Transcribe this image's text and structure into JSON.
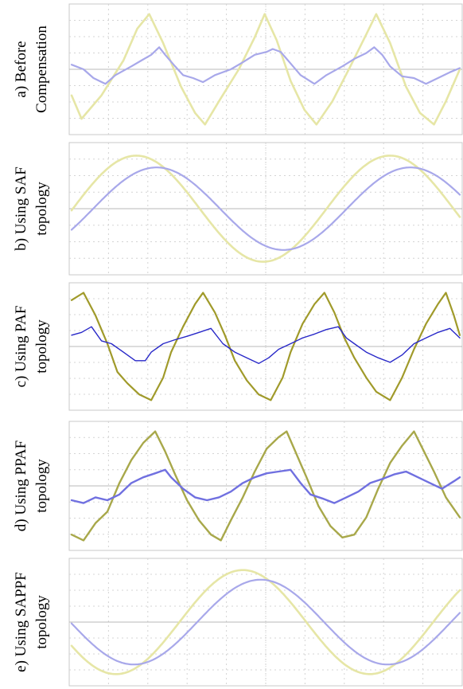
{
  "chart_data": [
    {
      "type": "line",
      "label_lines": [
        "a) Before",
        "Compensation"
      ],
      "grid": true,
      "series": [
        {
          "color": "#e6e6a6",
          "width": 2.6,
          "points": [
            [
              0,
              -0.45
            ],
            [
              0.05,
              -0.85
            ],
            [
              0.15,
              -0.45
            ],
            [
              0.26,
              0.15
            ],
            [
              0.33,
              0.7
            ],
            [
              0.39,
              0.95
            ],
            [
              0.46,
              0.45
            ],
            [
              0.55,
              -0.3
            ],
            [
              0.62,
              -0.75
            ],
            [
              0.67,
              -0.95
            ],
            [
              0.74,
              -0.55
            ],
            [
              0.84,
              0
            ],
            [
              0.92,
              0.55
            ],
            [
              0.97,
              0.95
            ],
            [
              1.03,
              0.5
            ],
            [
              1.1,
              -0.2
            ],
            [
              1.17,
              -0.7
            ],
            [
              1.23,
              -0.95
            ],
            [
              1.31,
              -0.55
            ],
            [
              1.4,
              0.05
            ],
            [
              1.48,
              0.6
            ],
            [
              1.53,
              0.95
            ],
            [
              1.6,
              0.45
            ],
            [
              1.68,
              -0.3
            ],
            [
              1.75,
              -0.75
            ],
            [
              1.82,
              -0.95
            ],
            [
              1.88,
              -0.55
            ],
            [
              1.95,
              0
            ]
          ]
        },
        {
          "color": "#a8a8ea",
          "width": 2.2,
          "points": [
            [
              0,
              0.08
            ],
            [
              0.06,
              0
            ],
            [
              0.11,
              -0.15
            ],
            [
              0.17,
              -0.25
            ],
            [
              0.22,
              -0.1
            ],
            [
              0.3,
              0.05
            ],
            [
              0.35,
              0.15
            ],
            [
              0.4,
              0.25
            ],
            [
              0.44,
              0.38
            ],
            [
              0.47,
              0.25
            ],
            [
              0.52,
              0.05
            ],
            [
              0.56,
              -0.1
            ],
            [
              0.61,
              -0.15
            ],
            [
              0.66,
              -0.22
            ],
            [
              0.72,
              -0.1
            ],
            [
              0.8,
              0
            ],
            [
              0.86,
              0.12
            ],
            [
              0.92,
              0.25
            ],
            [
              0.98,
              0.3
            ],
            [
              1.01,
              0.35
            ],
            [
              1.05,
              0.3
            ],
            [
              1.1,
              0.1
            ],
            [
              1.15,
              -0.1
            ],
            [
              1.22,
              -0.25
            ],
            [
              1.28,
              -0.1
            ],
            [
              1.36,
              0.05
            ],
            [
              1.42,
              0.18
            ],
            [
              1.48,
              0.28
            ],
            [
              1.52,
              0.38
            ],
            [
              1.56,
              0.25
            ],
            [
              1.6,
              0.05
            ],
            [
              1.66,
              -0.12
            ],
            [
              1.72,
              -0.15
            ],
            [
              1.78,
              -0.25
            ],
            [
              1.84,
              -0.15
            ],
            [
              1.9,
              -0.05
            ],
            [
              1.95,
              0.02
            ]
          ]
        }
      ]
    },
    {
      "type": "line",
      "label_lines": [
        "b) Using SAF",
        "topology"
      ],
      "grid": true,
      "series": [
        {
          "color": "#e6e6a6",
          "width": 2.6,
          "sine": {
            "amp": 0.9,
            "freq": 1.53,
            "phase": 0.0,
            "cycles_start": -0.08
          }
        },
        {
          "color": "#a8a8ea",
          "width": 2.2,
          "sine": {
            "amp": 0.7,
            "freq": 1.53,
            "phase": -0.08,
            "cycles_start": -0.08
          }
        }
      ]
    },
    {
      "type": "line",
      "label_lines": [
        "c) Using PAF",
        "topology"
      ],
      "grid": true,
      "series": [
        {
          "color": "#a09a2a",
          "width": 2.2,
          "points": [
            [
              0,
              0.82
            ],
            [
              0.06,
              0.95
            ],
            [
              0.12,
              0.55
            ],
            [
              0.18,
              0.05
            ],
            [
              0.23,
              -0.45
            ],
            [
              0.28,
              -0.65
            ],
            [
              0.34,
              -0.85
            ],
            [
              0.4,
              -0.95
            ],
            [
              0.46,
              -0.55
            ],
            [
              0.5,
              -0.1
            ],
            [
              0.56,
              0.35
            ],
            [
              0.62,
              0.75
            ],
            [
              0.66,
              0.95
            ],
            [
              0.72,
              0.6
            ],
            [
              0.77,
              0.2
            ],
            [
              0.82,
              -0.25
            ],
            [
              0.88,
              -0.6
            ],
            [
              0.94,
              -0.85
            ],
            [
              1.0,
              -0.95
            ],
            [
              1.06,
              -0.55
            ],
            [
              1.1,
              -0.1
            ],
            [
              1.16,
              0.4
            ],
            [
              1.22,
              0.75
            ],
            [
              1.27,
              0.95
            ],
            [
              1.32,
              0.6
            ],
            [
              1.37,
              0.15
            ],
            [
              1.42,
              -0.2
            ],
            [
              1.48,
              -0.55
            ],
            [
              1.53,
              -0.8
            ],
            [
              1.6,
              -0.95
            ],
            [
              1.66,
              -0.55
            ],
            [
              1.72,
              -0.05
            ],
            [
              1.78,
              0.4
            ],
            [
              1.84,
              0.75
            ],
            [
              1.88,
              0.95
            ],
            [
              1.92,
              0.55
            ],
            [
              1.95,
              0.2
            ]
          ]
        },
        {
          "color": "#2828c8",
          "width": 1.4,
          "points": [
            [
              0,
              0.2
            ],
            [
              0.05,
              0.25
            ],
            [
              0.1,
              0.35
            ],
            [
              0.15,
              0.1
            ],
            [
              0.2,
              0.05
            ],
            [
              0.26,
              -0.1
            ],
            [
              0.32,
              -0.25
            ],
            [
              0.37,
              -0.25
            ],
            [
              0.4,
              -0.1
            ],
            [
              0.46,
              0.05
            ],
            [
              0.52,
              0.12
            ],
            [
              0.58,
              0.18
            ],
            [
              0.64,
              0.25
            ],
            [
              0.7,
              0.32
            ],
            [
              0.76,
              0.05
            ],
            [
              0.82,
              -0.1
            ],
            [
              0.88,
              -0.2
            ],
            [
              0.94,
              -0.3
            ],
            [
              0.99,
              -0.2
            ],
            [
              1.04,
              -0.05
            ],
            [
              1.1,
              0.05
            ],
            [
              1.16,
              0.15
            ],
            [
              1.22,
              0.22
            ],
            [
              1.28,
              0.3
            ],
            [
              1.34,
              0.35
            ],
            [
              1.38,
              0.15
            ],
            [
              1.42,
              0.05
            ],
            [
              1.48,
              -0.1
            ],
            [
              1.54,
              -0.2
            ],
            [
              1.6,
              -0.28
            ],
            [
              1.66,
              -0.15
            ],
            [
              1.72,
              0.05
            ],
            [
              1.78,
              0.15
            ],
            [
              1.84,
              0.25
            ],
            [
              1.9,
              0.32
            ],
            [
              1.95,
              0.15
            ]
          ]
        }
      ]
    },
    {
      "type": "line",
      "label_lines": [
        "d) Using PPAF",
        "topology"
      ],
      "grid": true,
      "series": [
        {
          "color": "#a8a84a",
          "width": 2.4,
          "points": [
            [
              0,
              -0.85
            ],
            [
              0.06,
              -0.95
            ],
            [
              0.12,
              -0.65
            ],
            [
              0.18,
              -0.45
            ],
            [
              0.24,
              0.05
            ],
            [
              0.3,
              0.45
            ],
            [
              0.36,
              0.75
            ],
            [
              0.42,
              0.95
            ],
            [
              0.47,
              0.6
            ],
            [
              0.52,
              0.2
            ],
            [
              0.58,
              -0.25
            ],
            [
              0.64,
              -0.6
            ],
            [
              0.7,
              -0.85
            ],
            [
              0.75,
              -0.95
            ],
            [
              0.8,
              -0.6
            ],
            [
              0.86,
              -0.2
            ],
            [
              0.92,
              0.25
            ],
            [
              0.98,
              0.65
            ],
            [
              1.04,
              0.85
            ],
            [
              1.08,
              0.95
            ],
            [
              1.13,
              0.55
            ],
            [
              1.18,
              0.15
            ],
            [
              1.24,
              -0.35
            ],
            [
              1.3,
              -0.7
            ],
            [
              1.36,
              -0.9
            ],
            [
              1.42,
              -0.85
            ],
            [
              1.48,
              -0.55
            ],
            [
              1.54,
              -0.05
            ],
            [
              1.6,
              0.4
            ],
            [
              1.66,
              0.7
            ],
            [
              1.72,
              0.95
            ],
            [
              1.77,
              0.6
            ],
            [
              1.82,
              0.25
            ],
            [
              1.88,
              -0.2
            ],
            [
              1.95,
              -0.55
            ]
          ]
        },
        {
          "color": "#7070e0",
          "width": 2.4,
          "points": [
            [
              0,
              -0.25
            ],
            [
              0.06,
              -0.3
            ],
            [
              0.12,
              -0.2
            ],
            [
              0.18,
              -0.25
            ],
            [
              0.24,
              -0.15
            ],
            [
              0.3,
              0.05
            ],
            [
              0.36,
              0.15
            ],
            [
              0.42,
              0.22
            ],
            [
              0.47,
              0.28
            ],
            [
              0.5,
              0.15
            ],
            [
              0.56,
              -0.05
            ],
            [
              0.62,
              -0.2
            ],
            [
              0.68,
              -0.25
            ],
            [
              0.74,
              -0.2
            ],
            [
              0.8,
              -0.1
            ],
            [
              0.86,
              0.05
            ],
            [
              0.92,
              0.15
            ],
            [
              0.98,
              0.22
            ],
            [
              1.04,
              0.25
            ],
            [
              1.1,
              0.28
            ],
            [
              1.15,
              0.05
            ],
            [
              1.2,
              -0.15
            ],
            [
              1.26,
              -0.22
            ],
            [
              1.32,
              -0.3
            ],
            [
              1.38,
              -0.2
            ],
            [
              1.44,
              -0.1
            ],
            [
              1.5,
              0.05
            ],
            [
              1.56,
              0.12
            ],
            [
              1.62,
              0.2
            ],
            [
              1.68,
              0.25
            ],
            [
              1.74,
              0.15
            ],
            [
              1.8,
              0.05
            ],
            [
              1.86,
              -0.05
            ],
            [
              1.92,
              0.08
            ],
            [
              1.95,
              0.15
            ]
          ]
        }
      ]
    },
    {
      "type": "line",
      "label_lines": [
        "e) Using SAPPF",
        "topology"
      ],
      "grid": true,
      "series": [
        {
          "color": "#e6e6a6",
          "width": 2.6,
          "sine": {
            "amp": 0.92,
            "freq": 1.53,
            "phase": 0.5,
            "cycles_start": 0.0
          }
        },
        {
          "color": "#a8a8ea",
          "width": 2.2,
          "sine": {
            "amp": 0.75,
            "freq": 1.53,
            "phase": 0.43,
            "cycles_start": 0.0
          }
        }
      ]
    }
  ]
}
